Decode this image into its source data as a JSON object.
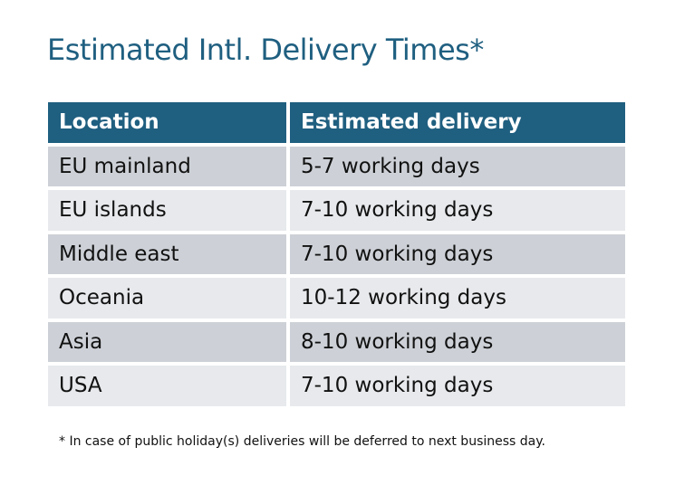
{
  "title": "Estimated Intl. Delivery Times*",
  "table": {
    "headers": [
      "Location",
      "Estimated delivery"
    ],
    "rows": [
      [
        "EU mainland",
        "5-7 working days"
      ],
      [
        "EU islands",
        "7-10 working days"
      ],
      [
        "Middle east",
        "7-10 working days"
      ],
      [
        "Oceania",
        "10-12 working days"
      ],
      [
        "Asia",
        "8-10 working days"
      ],
      [
        "USA",
        "7-10 working days"
      ]
    ]
  },
  "footnote": "* In case of public holiday(s) deliveries will be deferred to next business day.",
  "colors": {
    "header": "#1f5f80",
    "row_odd": "#cdd1d7",
    "row_even": "#e7e9ec",
    "title": "#1f5f80"
  }
}
